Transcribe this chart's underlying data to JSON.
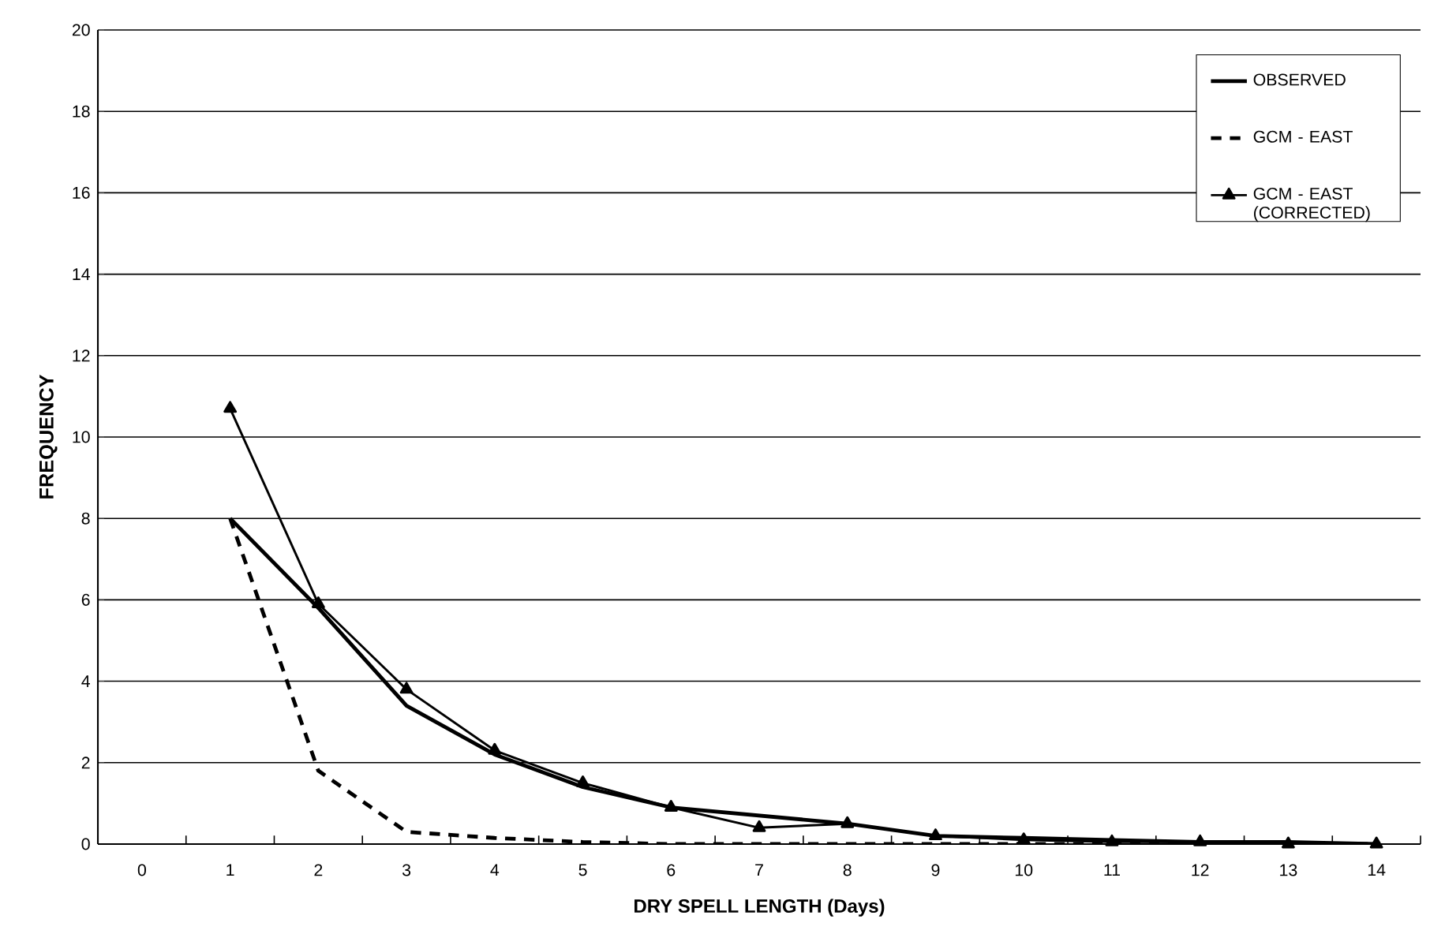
{
  "chart_data": {
    "type": "line",
    "xlabel": "DRY SPELL LENGTH (Days)",
    "ylabel": "FREQUENCY",
    "categories": [
      "0",
      "1",
      "2",
      "3",
      "4",
      "5",
      "6",
      "7",
      "8",
      "9",
      "10",
      "11",
      "12",
      "13",
      "14"
    ],
    "ylim": [
      0,
      20
    ],
    "yticks": [
      0,
      2,
      4,
      6,
      8,
      10,
      12,
      14,
      16,
      18,
      20
    ],
    "grid": "y",
    "legend": "top right",
    "series": [
      {
        "name": "OBSERVED",
        "color": "#000000",
        "marker": "none",
        "line_style": "solid",
        "values": [
          null,
          8.0,
          5.8,
          3.4,
          2.2,
          1.4,
          0.9,
          0.7,
          0.5,
          0.2,
          0.15,
          0.1,
          0.05,
          0.05,
          0.0
        ]
      },
      {
        "name": "GCM - EAST",
        "color": "#000000",
        "marker": "none",
        "line_style": "dashed",
        "values": [
          null,
          8.0,
          1.8,
          0.3,
          0.15,
          0.05,
          0.0,
          0.0,
          0.0,
          0.0,
          0.0,
          0.0,
          0.0,
          0.0,
          0.0
        ]
      },
      {
        "name": "GCM - EAST (CORRECTED)",
        "color": "#000000",
        "marker": "triangle",
        "line_style": "solid",
        "values": [
          null,
          10.7,
          5.9,
          3.8,
          2.3,
          1.5,
          0.9,
          0.4,
          0.5,
          0.2,
          0.1,
          0.05,
          0.05,
          0.0,
          0.0
        ]
      }
    ]
  }
}
